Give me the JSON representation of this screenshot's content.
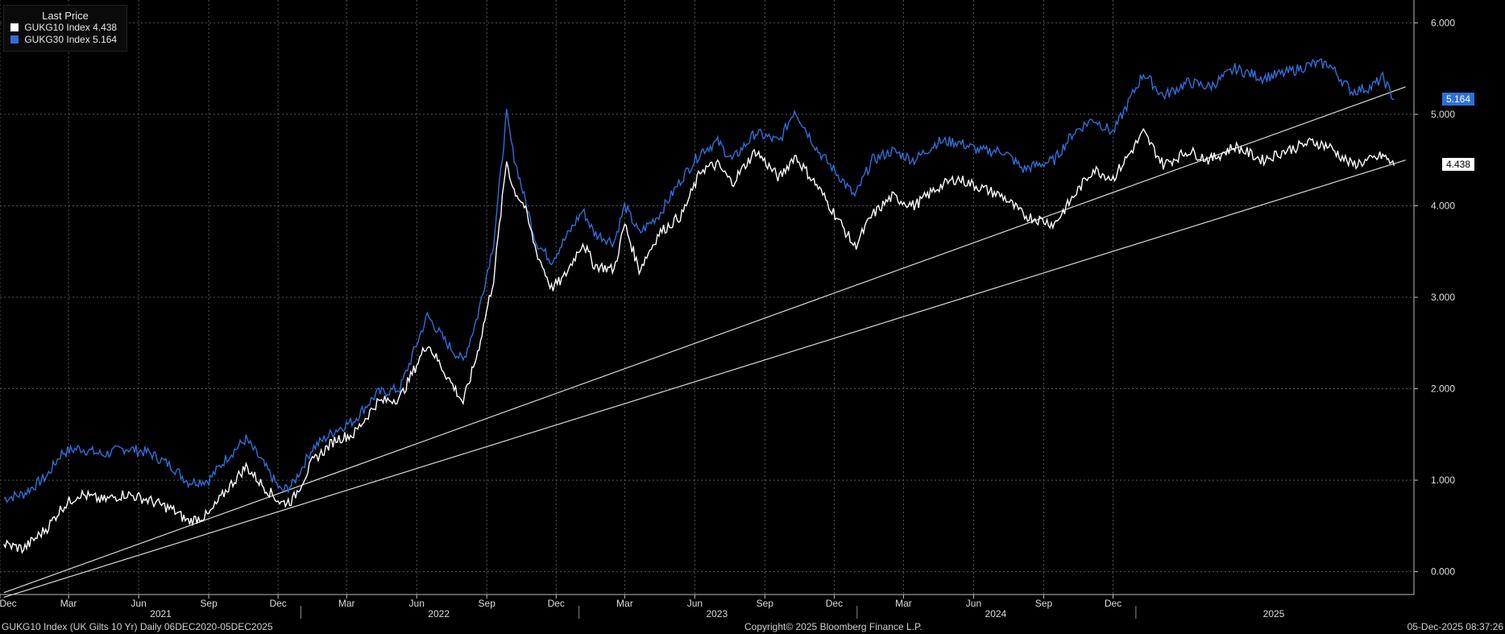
{
  "legend": {
    "title": "Last Price",
    "items": [
      {
        "label": "GUKG10 Index",
        "value": "4.438",
        "color": "#ffffff"
      },
      {
        "label": "GUKG30 Index",
        "value": "5.164",
        "color": "#2e6fd9"
      }
    ]
  },
  "last_tags": {
    "blue": {
      "text": "5.164",
      "color": "#2e6fd9"
    },
    "white": {
      "text": "4.438",
      "color": "#ffffff"
    }
  },
  "footer": {
    "left": "GUKG10 Index (UK Gilts 10 Yr) Daily 06DEC2020-05DEC2025",
    "center": "Copyright© 2025 Bloomberg Finance L.P.",
    "right": "05-Dec-2025 08:37:26"
  },
  "chart_data": {
    "type": "line",
    "title": "",
    "xlabel": "",
    "ylabel": "",
    "ylim": [
      -0.25,
      6.25
    ],
    "y_ticks": [
      "0.000",
      "1.000",
      "2.000",
      "3.000",
      "4.000",
      "5.000",
      "6.000"
    ],
    "x_month_ticks": [
      "Dec",
      "Mar",
      "Jun",
      "Sep",
      "Dec",
      "Mar",
      "Jun",
      "Sep",
      "Dec",
      "Mar",
      "Jun",
      "Sep",
      "Dec",
      "Mar",
      "Jun",
      "Sep",
      "Dec"
    ],
    "x_year_labels": [
      "2021",
      "2022",
      "2023",
      "2024",
      "2025"
    ],
    "grid": true,
    "series": [
      {
        "name": "GUKG10 Index",
        "color": "#ffffff",
        "points": [
          [
            "2020-12-06",
            0.3
          ],
          [
            "2021-01-01",
            0.25
          ],
          [
            "2021-02-01",
            0.48
          ],
          [
            "2021-02-20",
            0.7
          ],
          [
            "2021-03-15",
            0.85
          ],
          [
            "2021-04-15",
            0.78
          ],
          [
            "2021-05-15",
            0.85
          ],
          [
            "2021-06-15",
            0.78
          ],
          [
            "2021-07-15",
            0.68
          ],
          [
            "2021-08-05",
            0.55
          ],
          [
            "2021-09-01",
            0.62
          ],
          [
            "2021-09-25",
            0.9
          ],
          [
            "2021-10-20",
            1.15
          ],
          [
            "2021-11-10",
            0.95
          ],
          [
            "2021-12-05",
            0.75
          ],
          [
            "2021-12-20",
            0.78
          ],
          [
            "2022-01-15",
            1.2
          ],
          [
            "2022-02-15",
            1.45
          ],
          [
            "2022-03-10",
            1.5
          ],
          [
            "2022-04-10",
            1.85
          ],
          [
            "2022-05-10",
            1.9
          ],
          [
            "2022-06-15",
            2.5
          ],
          [
            "2022-07-10",
            2.15
          ],
          [
            "2022-08-01",
            1.85
          ],
          [
            "2022-08-20",
            2.4
          ],
          [
            "2022-09-10",
            3.2
          ],
          [
            "2022-09-27",
            4.5
          ],
          [
            "2022-10-05",
            4.2
          ],
          [
            "2022-10-20",
            4.0
          ],
          [
            "2022-11-05",
            3.5
          ],
          [
            "2022-11-25",
            3.1
          ],
          [
            "2022-12-10",
            3.2
          ],
          [
            "2023-01-05",
            3.6
          ],
          [
            "2023-01-20",
            3.35
          ],
          [
            "2023-02-15",
            3.3
          ],
          [
            "2023-03-01",
            3.8
          ],
          [
            "2023-03-20",
            3.3
          ],
          [
            "2023-04-15",
            3.7
          ],
          [
            "2023-05-15",
            3.9
          ],
          [
            "2023-06-10",
            4.4
          ],
          [
            "2023-07-01",
            4.45
          ],
          [
            "2023-07-20",
            4.25
          ],
          [
            "2023-08-20",
            4.6
          ],
          [
            "2023-09-20",
            4.3
          ],
          [
            "2023-10-10",
            4.55
          ],
          [
            "2023-11-10",
            4.2
          ],
          [
            "2023-12-10",
            3.8
          ],
          [
            "2023-12-28",
            3.55
          ],
          [
            "2024-01-20",
            3.9
          ],
          [
            "2024-02-15",
            4.1
          ],
          [
            "2024-03-15",
            4.0
          ],
          [
            "2024-04-15",
            4.2
          ],
          [
            "2024-05-10",
            4.3
          ],
          [
            "2024-06-10",
            4.2
          ],
          [
            "2024-07-10",
            4.1
          ],
          [
            "2024-08-05",
            3.9
          ],
          [
            "2024-09-15",
            3.8
          ],
          [
            "2024-10-10",
            4.1
          ],
          [
            "2024-11-05",
            4.4
          ],
          [
            "2024-12-01",
            4.3
          ],
          [
            "2025-01-10",
            4.8
          ],
          [
            "2025-02-05",
            4.45
          ],
          [
            "2025-03-10",
            4.6
          ],
          [
            "2025-04-07",
            4.5
          ],
          [
            "2025-05-10",
            4.65
          ],
          [
            "2025-06-15",
            4.5
          ],
          [
            "2025-07-15",
            4.6
          ],
          [
            "2025-08-20",
            4.7
          ],
          [
            "2025-09-10",
            4.65
          ],
          [
            "2025-10-10",
            4.45
          ],
          [
            "2025-11-05",
            4.5
          ],
          [
            "2025-11-20",
            4.55
          ],
          [
            "2025-12-05",
            4.438
          ]
        ]
      },
      {
        "name": "GUKG30 Index",
        "color": "#2e6fd9",
        "points": [
          [
            "2020-12-06",
            0.8
          ],
          [
            "2021-01-01",
            0.85
          ],
          [
            "2021-02-01",
            1.05
          ],
          [
            "2021-02-20",
            1.3
          ],
          [
            "2021-03-15",
            1.35
          ],
          [
            "2021-04-15",
            1.28
          ],
          [
            "2021-05-15",
            1.35
          ],
          [
            "2021-06-15",
            1.3
          ],
          [
            "2021-07-15",
            1.15
          ],
          [
            "2021-08-05",
            0.98
          ],
          [
            "2021-09-01",
            1.0
          ],
          [
            "2021-09-25",
            1.25
          ],
          [
            "2021-10-20",
            1.45
          ],
          [
            "2021-11-10",
            1.2
          ],
          [
            "2021-12-05",
            0.88
          ],
          [
            "2021-12-20",
            0.95
          ],
          [
            "2022-01-15",
            1.35
          ],
          [
            "2022-02-15",
            1.55
          ],
          [
            "2022-03-10",
            1.65
          ],
          [
            "2022-04-10",
            1.95
          ],
          [
            "2022-05-10",
            2.0
          ],
          [
            "2022-06-15",
            2.8
          ],
          [
            "2022-07-10",
            2.5
          ],
          [
            "2022-08-01",
            2.3
          ],
          [
            "2022-08-20",
            2.8
          ],
          [
            "2022-09-10",
            3.6
          ],
          [
            "2022-09-27",
            5.0
          ],
          [
            "2022-10-05",
            4.6
          ],
          [
            "2022-10-20",
            4.1
          ],
          [
            "2022-11-05",
            3.6
          ],
          [
            "2022-11-25",
            3.4
          ],
          [
            "2022-12-10",
            3.6
          ],
          [
            "2023-01-05",
            3.95
          ],
          [
            "2023-01-20",
            3.7
          ],
          [
            "2023-02-15",
            3.6
          ],
          [
            "2023-03-01",
            4.0
          ],
          [
            "2023-03-20",
            3.7
          ],
          [
            "2023-04-15",
            3.9
          ],
          [
            "2023-05-15",
            4.3
          ],
          [
            "2023-06-10",
            4.6
          ],
          [
            "2023-07-01",
            4.7
          ],
          [
            "2023-07-20",
            4.5
          ],
          [
            "2023-08-20",
            4.8
          ],
          [
            "2023-09-20",
            4.7
          ],
          [
            "2023-10-10",
            5.05
          ],
          [
            "2023-11-10",
            4.6
          ],
          [
            "2023-12-10",
            4.3
          ],
          [
            "2023-12-28",
            4.1
          ],
          [
            "2024-01-20",
            4.5
          ],
          [
            "2024-02-15",
            4.6
          ],
          [
            "2024-03-15",
            4.5
          ],
          [
            "2024-04-15",
            4.7
          ],
          [
            "2024-05-10",
            4.7
          ],
          [
            "2024-06-10",
            4.6
          ],
          [
            "2024-07-10",
            4.6
          ],
          [
            "2024-08-05",
            4.4
          ],
          [
            "2024-09-15",
            4.5
          ],
          [
            "2024-10-10",
            4.8
          ],
          [
            "2024-11-05",
            4.95
          ],
          [
            "2024-12-01",
            4.8
          ],
          [
            "2025-01-10",
            5.45
          ],
          [
            "2025-02-05",
            5.2
          ],
          [
            "2025-03-10",
            5.35
          ],
          [
            "2025-04-07",
            5.3
          ],
          [
            "2025-05-10",
            5.5
          ],
          [
            "2025-06-15",
            5.4
          ],
          [
            "2025-07-15",
            5.45
          ],
          [
            "2025-08-20",
            5.55
          ],
          [
            "2025-09-10",
            5.55
          ],
          [
            "2025-10-10",
            5.25
          ],
          [
            "2025-11-05",
            5.3
          ],
          [
            "2025-11-20",
            5.4
          ],
          [
            "2025-12-05",
            5.164
          ]
        ]
      }
    ],
    "trendlines": [
      {
        "from": [
          "2020-12-06",
          -0.28
        ],
        "to": [
          "2025-12-20",
          4.5
        ],
        "color": "#d9d9d9"
      },
      {
        "from": [
          "2020-12-06",
          -0.23
        ],
        "to": [
          "2025-12-20",
          5.3
        ],
        "color": "#d9d9d9"
      }
    ]
  }
}
